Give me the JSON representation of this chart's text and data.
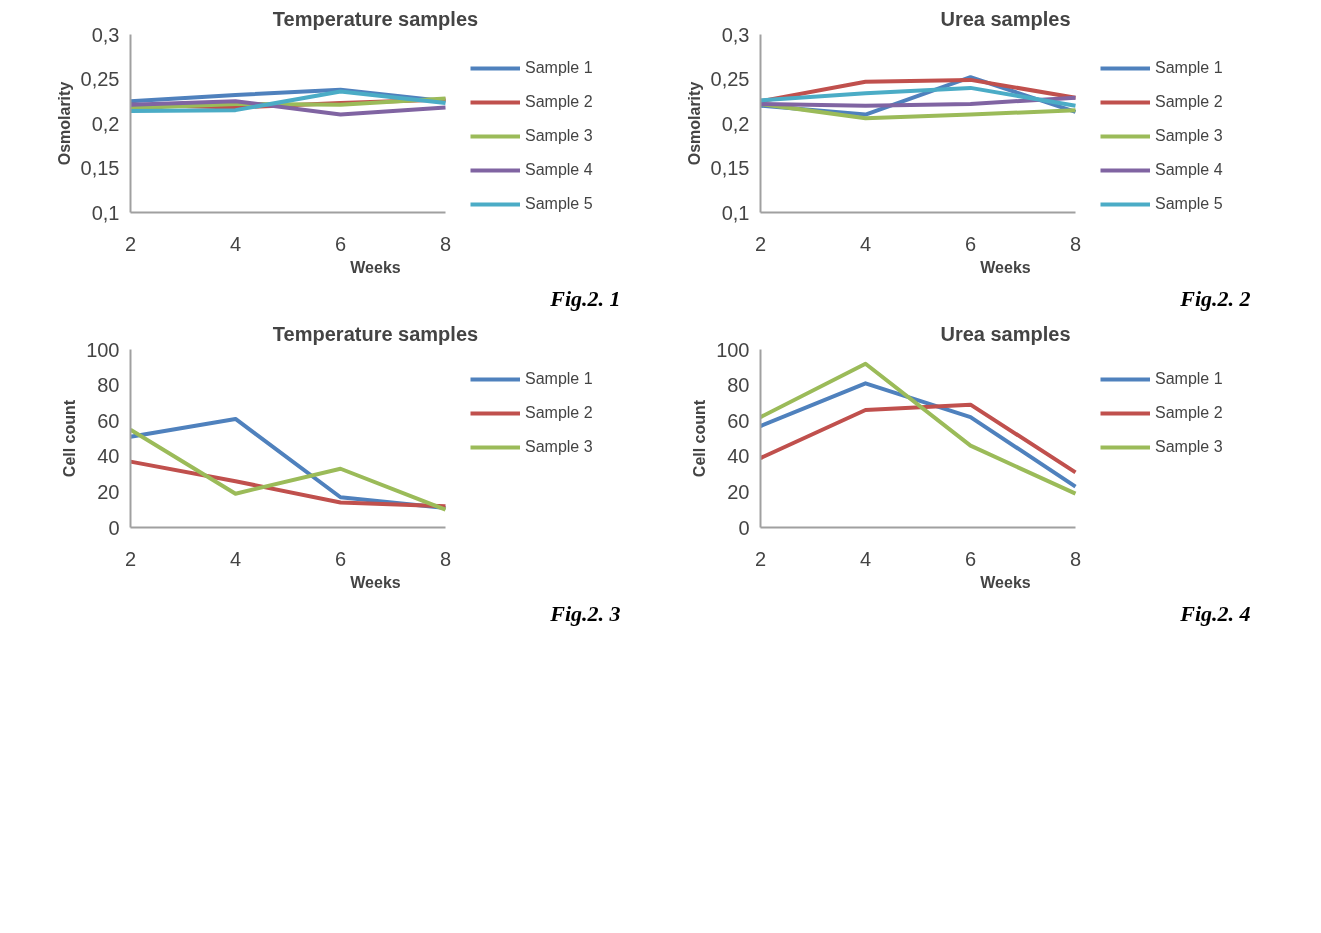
{
  "chart_data": [
    {
      "type": "line",
      "title": "Temperature samples",
      "xlabel": "Weeks",
      "ylabel": "Osmolarity",
      "x": [
        2,
        4,
        6,
        8
      ],
      "xlim": [
        2,
        8
      ],
      "xticks": [
        2,
        4,
        6,
        8
      ],
      "ylim": [
        0.1,
        0.3
      ],
      "yticks": [
        {
          "value": 0.1,
          "label": "0,1"
        },
        {
          "value": 0.15,
          "label": "0,15"
        },
        {
          "value": 0.2,
          "label": "0,2"
        },
        {
          "value": 0.25,
          "label": "0,25"
        },
        {
          "value": 0.3,
          "label": "0,3"
        }
      ],
      "legend": "right",
      "grid": false,
      "annotations": [
        "Fig.2. 1"
      ],
      "series": [
        {
          "name": "Sample 1",
          "color": "#4f81bd",
          "values": [
            0.225,
            0.232,
            0.238,
            0.225
          ]
        },
        {
          "name": "Sample 2",
          "color": "#c0504d",
          "values": [
            0.221,
            0.218,
            0.223,
            0.227
          ]
        },
        {
          "name": "Sample 3",
          "color": "#9bbb59",
          "values": [
            0.217,
            0.222,
            0.221,
            0.228
          ]
        },
        {
          "name": "Sample 4",
          "color": "#8064a2",
          "values": [
            0.221,
            0.225,
            0.21,
            0.218
          ]
        },
        {
          "name": "Sample 5",
          "color": "#4bacc6",
          "values": [
            0.214,
            0.215,
            0.236,
            0.223
          ]
        }
      ]
    },
    {
      "type": "line",
      "title": "Urea samples",
      "xlabel": "Weeks",
      "ylabel": "Osmolarity",
      "x": [
        2,
        4,
        6,
        8
      ],
      "xlim": [
        2,
        8
      ],
      "xticks": [
        2,
        4,
        6,
        8
      ],
      "ylim": [
        0.1,
        0.3
      ],
      "yticks": [
        {
          "value": 0.1,
          "label": "0,1"
        },
        {
          "value": 0.15,
          "label": "0,15"
        },
        {
          "value": 0.2,
          "label": "0,2"
        },
        {
          "value": 0.25,
          "label": "0,25"
        },
        {
          "value": 0.3,
          "label": "0,3"
        }
      ],
      "legend": "right",
      "grid": false,
      "annotations": [
        "Fig.2. 2"
      ],
      "series": [
        {
          "name": "Sample 1",
          "color": "#4f81bd",
          "values": [
            0.22,
            0.21,
            0.252,
            0.213
          ]
        },
        {
          "name": "Sample 2",
          "color": "#c0504d",
          "values": [
            0.225,
            0.247,
            0.249,
            0.229
          ]
        },
        {
          "name": "Sample 3",
          "color": "#9bbb59",
          "values": [
            0.222,
            0.206,
            0.21,
            0.215
          ]
        },
        {
          "name": "Sample 4",
          "color": "#8064a2",
          "values": [
            0.222,
            0.22,
            0.222,
            0.229
          ]
        },
        {
          "name": "Sample 5",
          "color": "#4bacc6",
          "values": [
            0.226,
            0.234,
            0.24,
            0.22
          ]
        }
      ]
    },
    {
      "type": "line",
      "title": "Temperature samples",
      "xlabel": "Weeks",
      "ylabel": "Cell count",
      "x": [
        2,
        4,
        6,
        8
      ],
      "xlim": [
        2,
        8
      ],
      "xticks": [
        2,
        4,
        6,
        8
      ],
      "ylim": [
        0,
        100
      ],
      "yticks": [
        0,
        20,
        40,
        60,
        80,
        100
      ],
      "legend": "right",
      "grid": false,
      "annotations": [
        "Fig.2. 3"
      ],
      "series": [
        {
          "name": "Sample 1",
          "color": "#4f81bd",
          "values": [
            51,
            61,
            17,
            11
          ]
        },
        {
          "name": "Sample 2",
          "color": "#c0504d",
          "values": [
            37,
            26,
            14,
            12
          ]
        },
        {
          "name": "Sample 3",
          "color": "#9bbb59",
          "values": [
            55,
            19,
            33,
            10
          ]
        }
      ]
    },
    {
      "type": "line",
      "title": "Urea samples",
      "xlabel": "Weeks",
      "ylabel": "Cell count",
      "x": [
        2,
        4,
        6,
        8
      ],
      "xlim": [
        2,
        8
      ],
      "xticks": [
        2,
        4,
        6,
        8
      ],
      "ylim": [
        0,
        100
      ],
      "yticks": [
        0,
        20,
        40,
        60,
        80,
        100
      ],
      "legend": "right",
      "grid": false,
      "annotations": [
        "Fig.2. 4"
      ],
      "series": [
        {
          "name": "Sample 1",
          "color": "#4f81bd",
          "values": [
            57,
            81,
            62,
            23
          ]
        },
        {
          "name": "Sample 2",
          "color": "#c0504d",
          "values": [
            39,
            66,
            69,
            31
          ]
        },
        {
          "name": "Sample 3",
          "color": "#9bbb59",
          "values": [
            62,
            92,
            46,
            19
          ]
        }
      ]
    }
  ]
}
